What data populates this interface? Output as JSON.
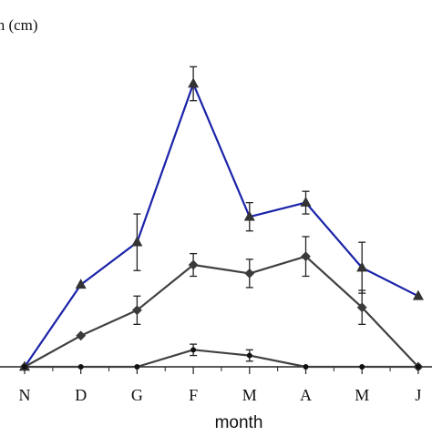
{
  "chart_data": {
    "type": "line",
    "ylabel": "th (cm)",
    "xlabel": "month",
    "categories": [
      "N",
      "D",
      "G",
      "F",
      "M",
      "A",
      "M",
      "J"
    ],
    "ylim": [
      0,
      100
    ],
    "grid": false,
    "series": [
      {
        "color": "#1a22a8",
        "marker": "triangle",
        "values": [
          0,
          29,
          44,
          100,
          53,
          58,
          35,
          25
        ],
        "errors": [
          0,
          0,
          10,
          6,
          5,
          4,
          9,
          0
        ]
      },
      {
        "color": "#404040",
        "marker": "diamond",
        "values": [
          0,
          11,
          20,
          36,
          33,
          39,
          21,
          0
        ],
        "errors": [
          0,
          0,
          5,
          4,
          5,
          7,
          6,
          0
        ]
      },
      {
        "color": "#404040",
        "marker": "circle",
        "values": [
          0,
          0,
          0,
          6,
          4,
          0,
          0,
          0
        ],
        "errors": [
          0,
          0,
          0,
          2,
          2,
          0,
          0,
          0
        ]
      }
    ]
  }
}
